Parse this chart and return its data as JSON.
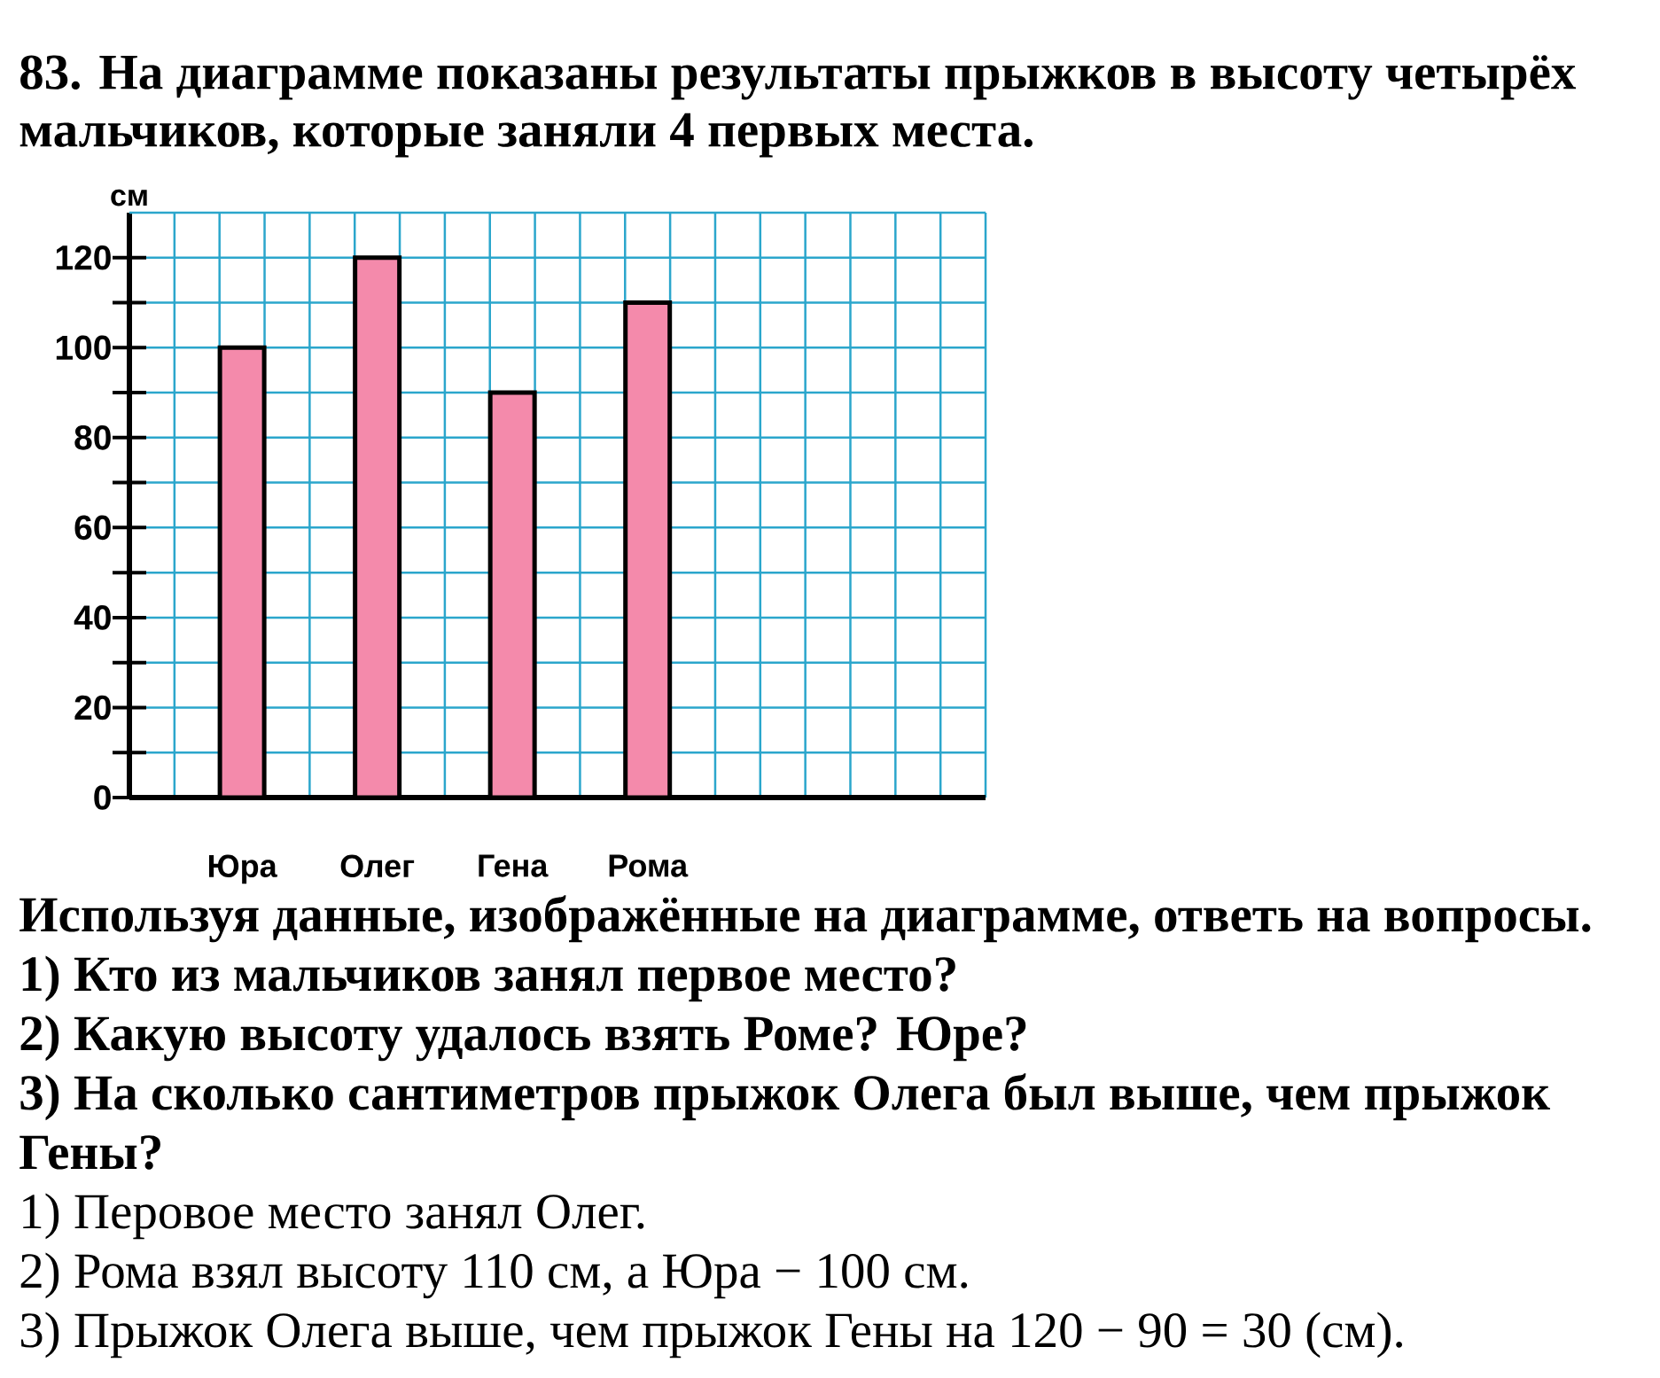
{
  "chart_data": {
    "type": "bar",
    "title": "83. На диаграмме показаны результаты прыжков в высоту четырёх мальчиков, которые заняли 4 первых места.",
    "ylabel": "см",
    "categories": [
      "Юра",
      "Олег",
      "Гена",
      "Рома"
    ],
    "values": [
      100,
      120,
      90,
      110
    ],
    "color": "#f48aab",
    "ylim": [
      0,
      130
    ],
    "yticks": [
      0,
      {
        "value": 10,
        "label": null
      },
      20,
      {
        "value": 30,
        "label": null
      },
      40,
      {
        "value": 50,
        "label": null
      },
      60,
      {
        "value": 70,
        "label": null
      },
      80,
      {
        "value": 90,
        "label": null
      },
      100,
      {
        "value": 110,
        "label": null
      },
      120
    ],
    "grid": true,
    "annotations": [
      "Используя данные, изображённые на диаграмме, ответь на вопросы.",
      "1) Кто из мальчиков занял первое место?",
      "2) Какую высоту удалось взять Роме? Юре?",
      "3) На сколько сантиметров прыжок Олега был выше, чем прыжок Гены?",
      "1) Перовое место занял Олег.",
      "2) Рома взял высоту 110 см, а Юра − 100 см.",
      "3) Прыжок Олега выше, чем прыжок Гены на 120 − 90 = 30 (см)."
    ]
  }
}
